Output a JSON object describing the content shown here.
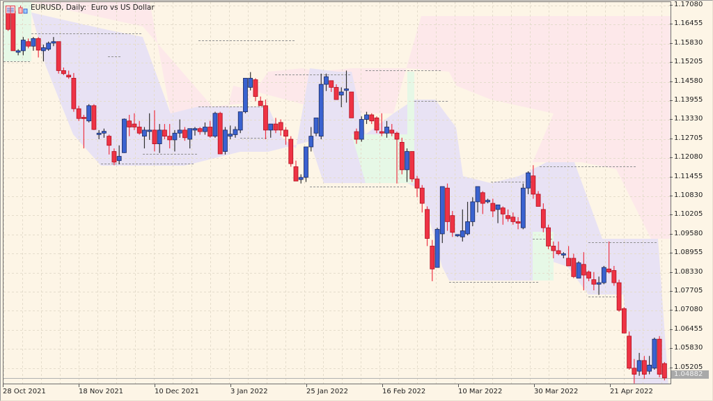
{
  "window": {
    "symbol_title": "EURUSD, Daily:  Euro vs US Dollar",
    "icons": [
      "chart-list-icon",
      "chart-type-icon"
    ]
  },
  "colors": {
    "background": "#fdf5e6",
    "bull_candle": "#3a62d0",
    "bear_candle": "#ee3344",
    "grid": "#e4dccb",
    "cloud_down": "#fde8ea",
    "cloud_range": "#e8e2f4",
    "cloud_up": "#e6f8e6",
    "cloud_edge": "#e2f7f9",
    "level_line": "#909090",
    "price_label_bg": "#a9a9a9"
  },
  "price_axis": {
    "ticks": [
      "1.17080",
      "1.16455",
      "1.15830",
      "1.15205",
      "1.14580",
      "1.13955",
      "1.13330",
      "1.12705",
      "1.12080",
      "1.11455",
      "1.10830",
      "1.10205",
      "1.09580",
      "1.08955",
      "1.08330",
      "1.07705",
      "1.07080",
      "1.06455",
      "1.05830",
      "1.05205"
    ],
    "current_price": "1.04882"
  },
  "time_axis": {
    "ticks": [
      "28 Oct 2021",
      "18 Nov 2021",
      "10 Dec 2021",
      "3 Jan 2022",
      "25 Jan 2022",
      "16 Feb 2022",
      "10 Mar 2022",
      "30 Mar 2022",
      "21 Apr 2022"
    ]
  },
  "chart_data": {
    "type": "candlestick",
    "title": "EURUSD, Daily: Euro vs US Dollar",
    "xlabel": "",
    "ylabel": "",
    "ylim": [
      1.0475,
      1.1715
    ],
    "x_tick_labels": [
      "28 Oct 2021",
      "18 Nov 2021",
      "10 Dec 2021",
      "3 Jan 2022",
      "25 Jan 2022",
      "16 Feb 2022",
      "10 Mar 2022",
      "30 Mar 2022",
      "21 Apr 2022"
    ],
    "y_tick_labels": [
      "1.17080",
      "1.16455",
      "1.15830",
      "1.15205",
      "1.14580",
      "1.13955",
      "1.13330",
      "1.12705",
      "1.12080",
      "1.11455",
      "1.10830",
      "1.10205",
      "1.09580",
      "1.08955",
      "1.08330",
      "1.07705",
      "1.07080",
      "1.06455",
      "1.05830",
      "1.05205"
    ],
    "last_price": 1.04882,
    "grid": true,
    "candles_ohlc": [
      [
        1.169,
        1.17,
        1.1625,
        1.163
      ],
      [
        1.169,
        1.17,
        1.156,
        1.156
      ],
      [
        1.1555,
        1.1565,
        1.1545,
        1.156
      ],
      [
        1.156,
        1.1605,
        1.1545,
        1.1595
      ],
      [
        1.159,
        1.16,
        1.1568,
        1.1575
      ],
      [
        1.1575,
        1.1605,
        1.156,
        1.16
      ],
      [
        1.16,
        1.1605,
        1.1538,
        1.1562
      ],
      [
        1.156,
        1.158,
        1.1525,
        1.157
      ],
      [
        1.1565,
        1.159,
        1.156,
        1.1585
      ],
      [
        1.1585,
        1.1605,
        1.1575,
        1.159
      ],
      [
        1.159,
        1.159,
        1.1485,
        1.1495
      ],
      [
        1.1495,
        1.1505,
        1.148,
        1.1485
      ],
      [
        1.148,
        1.1495,
        1.1468,
        1.1474
      ],
      [
        1.147,
        1.1487,
        1.136,
        1.137
      ],
      [
        1.137,
        1.138,
        1.133,
        1.1338
      ],
      [
        1.1342,
        1.135,
        1.124,
        1.134
      ],
      [
        1.133,
        1.1385,
        1.1325,
        1.138
      ],
      [
        1.138,
        1.1385,
        1.13,
        1.1302
      ],
      [
        1.129,
        1.13,
        1.127,
        1.129
      ],
      [
        1.129,
        1.1305,
        1.1275,
        1.1296
      ],
      [
        1.128,
        1.1285,
        1.122,
        1.125
      ],
      [
        1.123,
        1.124,
        1.1185,
        1.1195
      ],
      [
        1.12,
        1.125,
        1.1188,
        1.1214
      ],
      [
        1.1226,
        1.1338,
        1.1225,
        1.1336
      ],
      [
        1.133,
        1.135,
        1.128,
        1.131
      ],
      [
        1.132,
        1.1355,
        1.13,
        1.131
      ],
      [
        1.131,
        1.133,
        1.1285,
        1.129
      ],
      [
        1.128,
        1.131,
        1.124,
        1.13
      ],
      [
        1.13,
        1.1355,
        1.1268,
        1.13
      ],
      [
        1.13,
        1.1365,
        1.123,
        1.1255
      ],
      [
        1.1255,
        1.132,
        1.1225,
        1.13
      ],
      [
        1.13,
        1.132,
        1.127,
        1.128
      ],
      [
        1.128,
        1.132,
        1.124,
        1.1268
      ],
      [
        1.1268,
        1.13,
        1.123,
        1.129
      ],
      [
        1.129,
        1.1335,
        1.1275,
        1.13
      ],
      [
        1.13,
        1.131,
        1.1265,
        1.1275
      ],
      [
        1.127,
        1.129,
        1.124,
        1.1305
      ],
      [
        1.13,
        1.131,
        1.1282,
        1.1305
      ],
      [
        1.1305,
        1.131,
        1.1285,
        1.1295
      ],
      [
        1.1295,
        1.1325,
        1.1285,
        1.131
      ],
      [
        1.131,
        1.133,
        1.1275,
        1.128
      ],
      [
        1.128,
        1.136,
        1.1275,
        1.1355
      ],
      [
        1.1355,
        1.136,
        1.1222,
        1.1222
      ],
      [
        1.123,
        1.131,
        1.122,
        1.13
      ],
      [
        1.128,
        1.1315,
        1.127,
        1.1287
      ],
      [
        1.1285,
        1.1312,
        1.1275,
        1.1302
      ],
      [
        1.13,
        1.136,
        1.129,
        1.136
      ],
      [
        1.136,
        1.141,
        1.1355,
        1.147
      ],
      [
        1.144,
        1.149,
        1.143,
        1.147
      ],
      [
        1.1465,
        1.147,
        1.1395,
        1.141
      ],
      [
        1.1395,
        1.141,
        1.138,
        1.138
      ],
      [
        1.138,
        1.14,
        1.127,
        1.13
      ],
      [
        1.13,
        1.132,
        1.1275,
        1.132
      ],
      [
        1.132,
        1.134,
        1.129,
        1.13
      ],
      [
        1.1325,
        1.1335,
        1.1282,
        1.13
      ],
      [
        1.13,
        1.131,
        1.1252,
        1.128
      ],
      [
        1.127,
        1.128,
        1.118,
        1.119
      ],
      [
        1.118,
        1.12,
        1.1133,
        1.1133
      ],
      [
        1.1138,
        1.1155,
        1.1125,
        1.1145
      ],
      [
        1.1145,
        1.1245,
        1.113,
        1.1245
      ],
      [
        1.1245,
        1.131,
        1.123,
        1.128
      ],
      [
        1.129,
        1.134,
        1.128,
        1.134
      ],
      [
        1.128,
        1.1485,
        1.127,
        1.145
      ],
      [
        1.145,
        1.1485,
        1.1428,
        1.1475
      ],
      [
        1.1462,
        1.1462,
        1.1425,
        1.144
      ],
      [
        1.144,
        1.145,
        1.14,
        1.14
      ],
      [
        1.1415,
        1.144,
        1.1375,
        1.1425
      ],
      [
        1.143,
        1.1495,
        1.139,
        1.1435
      ],
      [
        1.1425,
        1.1425,
        1.1345,
        1.134
      ],
      [
        1.1295,
        1.1305,
        1.1255,
        1.127
      ],
      [
        1.127,
        1.1345,
        1.1262,
        1.1335
      ],
      [
        1.1335,
        1.136,
        1.132,
        1.135
      ],
      [
        1.135,
        1.1355,
        1.132,
        1.133
      ],
      [
        1.134,
        1.1345,
        1.129,
        1.13
      ],
      [
        1.1295,
        1.1355,
        1.128,
        1.129
      ],
      [
        1.129,
        1.133,
        1.1275,
        1.131
      ],
      [
        1.13,
        1.132,
        1.128,
        1.129
      ],
      [
        1.129,
        1.1295,
        1.1125,
        1.127
      ],
      [
        1.126,
        1.1275,
        1.1155,
        1.117
      ],
      [
        1.117,
        1.124,
        1.113,
        1.123
      ],
      [
        1.123,
        1.123,
        1.113,
        1.114
      ],
      [
        1.114,
        1.115,
        1.108,
        1.111
      ],
      [
        1.111,
        1.112,
        1.103,
        1.106
      ],
      [
        1.104,
        1.105,
        1.092,
        1.0945
      ],
      [
        1.092,
        1.094,
        1.0805,
        1.0845
      ],
      [
        1.085,
        1.098,
        1.085,
        1.0975
      ],
      [
        1.096,
        1.1115,
        1.093,
        1.1115
      ],
      [
        1.111,
        1.1125,
        1.097,
        1.1
      ],
      [
        1.102,
        1.1035,
        1.095,
        1.0965
      ],
      [
        1.0955,
        1.0958,
        1.095,
        1.0958
      ],
      [
        1.095,
        1.104,
        1.0935,
        1.097
      ],
      [
        1.096,
        1.1065,
        1.0955,
        1.1
      ],
      [
        1.1,
        1.108,
        1.0985,
        1.1065
      ],
      [
        1.1065,
        1.1115,
        1.103,
        1.1115
      ],
      [
        1.1095,
        1.11,
        1.1025,
        1.106
      ],
      [
        1.1065,
        1.1075,
        1.106,
        1.107
      ],
      [
        1.106,
        1.1075,
        1.1015,
        1.1035
      ],
      [
        1.104,
        1.1055,
        1.0995,
        1.1055
      ],
      [
        1.1045,
        1.105,
        1.099,
        1.1025
      ],
      [
        1.102,
        1.104,
        1.1,
        1.101
      ],
      [
        1.1015,
        1.103,
        1.099,
        1.1
      ],
      [
        1.1,
        1.1015,
        1.0975,
        1.0995
      ],
      [
        1.098,
        1.1125,
        1.0975,
        1.111
      ],
      [
        1.111,
        1.1165,
        1.109,
        1.116
      ],
      [
        1.115,
        1.1185,
        1.1075,
        1.109
      ],
      [
        1.109,
        1.11,
        1.105,
        1.105
      ],
      [
        1.104,
        1.106,
        1.0965,
        1.098
      ],
      [
        1.098,
        1.099,
        1.091,
        1.092
      ],
      [
        1.092,
        1.0935,
        1.088,
        1.0905
      ],
      [
        1.0905,
        1.0935,
        1.089,
        1.0895
      ],
      [
        1.0895,
        1.09,
        1.088,
        1.0895
      ],
      [
        1.088,
        1.092,
        1.087,
        1.0855
      ],
      [
        1.088,
        1.0895,
        1.0815,
        1.082
      ],
      [
        1.0815,
        1.087,
        1.0815,
        1.0865
      ],
      [
        1.086,
        1.09,
        1.0775,
        1.0825
      ],
      [
        1.0835,
        1.084,
        1.0805,
        1.0815
      ],
      [
        1.081,
        1.0835,
        1.0775,
        1.0795
      ],
      [
        1.0795,
        1.082,
        1.076,
        1.08
      ],
      [
        1.08,
        1.0855,
        1.0795,
        1.085
      ],
      [
        1.0845,
        1.0935,
        1.083,
        1.0835
      ],
      [
        1.084,
        1.0855,
        1.079,
        1.08
      ],
      [
        1.08,
        1.081,
        1.0705,
        1.071
      ],
      [
        1.0715,
        1.072,
        1.0635,
        1.0635
      ],
      [
        1.0625,
        1.064,
        1.0515,
        1.052
      ],
      [
        1.052,
        1.055,
        1.047,
        1.05
      ],
      [
        1.051,
        1.057,
        1.0495,
        1.0545
      ],
      [
        1.0545,
        1.056,
        1.0485,
        1.05
      ],
      [
        1.051,
        1.056,
        1.05,
        1.053
      ],
      [
        1.052,
        1.062,
        1.0515,
        1.0615
      ],
      [
        1.0615,
        1.0625,
        1.049,
        1.05
      ],
      [
        1.0535,
        1.054,
        1.048,
        1.0488
      ]
    ]
  }
}
